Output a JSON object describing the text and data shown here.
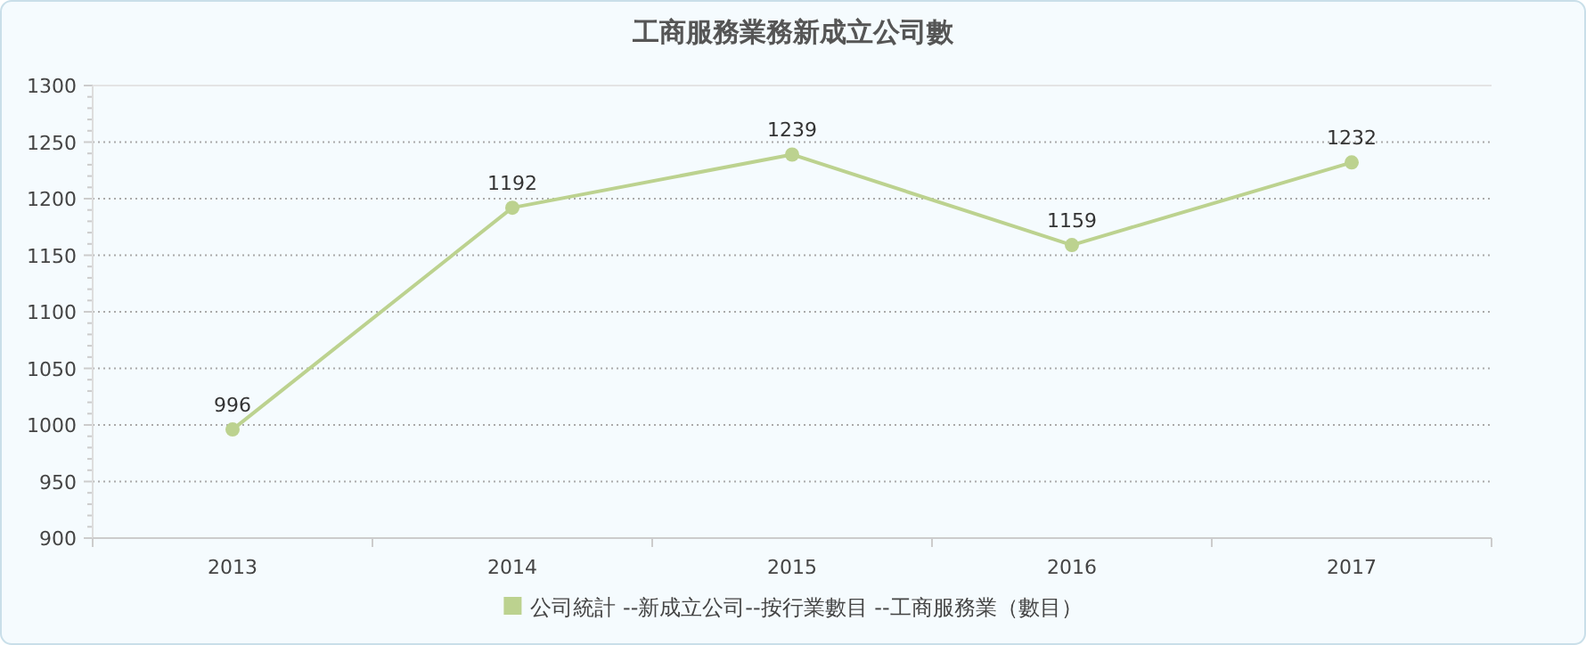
{
  "chart_data": {
    "type": "line",
    "title": "工商服務業務新成立公司數",
    "categories": [
      "2013",
      "2014",
      "2015",
      "2016",
      "2017"
    ],
    "series": [
      {
        "name": "公司統計 --新成立公司--按行業數目 --工商服務業（數目）",
        "color": "#bcd28f",
        "values": [
          996,
          1192,
          1239,
          1159,
          1232
        ]
      }
    ],
    "ylim": [
      900,
      1300
    ],
    "yticks": [
      900,
      950,
      1000,
      1050,
      1100,
      1150,
      1200,
      1250,
      1300
    ],
    "grid": "y",
    "legend": "bottom",
    "marker": "circle",
    "line_style": "solid",
    "data_labels": true
  }
}
